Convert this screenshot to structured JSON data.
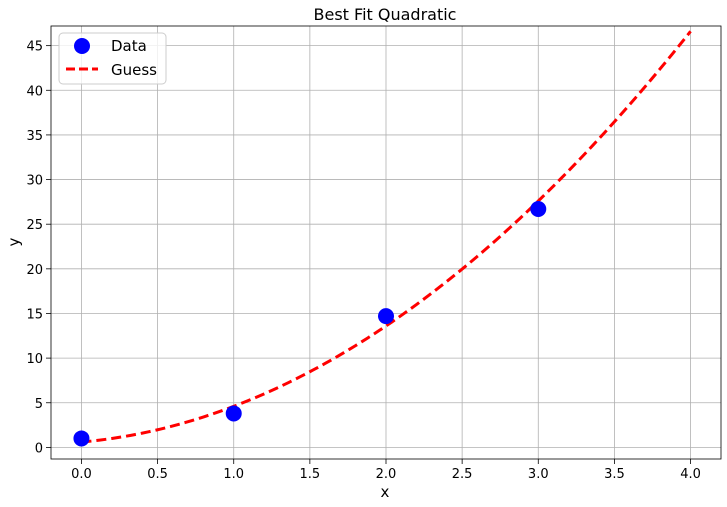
{
  "chart_data": {
    "type": "scatter",
    "title": "Best Fit Quadratic",
    "xlabel": "x",
    "ylabel": "y",
    "xlim": [
      -0.2,
      4.2
    ],
    "ylim": [
      -1.3,
      47.2
    ],
    "xticks": [
      0.0,
      0.5,
      1.0,
      1.5,
      2.0,
      2.5,
      3.0,
      3.5,
      4.0
    ],
    "xtick_labels": [
      "0.0",
      "0.5",
      "1.0",
      "1.5",
      "2.0",
      "2.5",
      "3.0",
      "3.5",
      "4.0"
    ],
    "yticks": [
      0,
      5,
      10,
      15,
      20,
      25,
      30,
      35,
      40,
      45
    ],
    "ytick_labels": [
      "0",
      "5",
      "10",
      "15",
      "20",
      "25",
      "30",
      "35",
      "40",
      "45"
    ],
    "grid": true,
    "legend_position": "top-left",
    "series": [
      {
        "name": "Data",
        "kind": "scatter",
        "color": "#0000ff",
        "x": [
          0,
          1,
          2,
          3
        ],
        "y": [
          1.0,
          3.8,
          14.7,
          26.7
        ]
      },
      {
        "name": "Guess",
        "kind": "line",
        "style": "dashed",
        "color": "#ff0000",
        "formula": "2.5*x^2 + 1.5*x + 0.6",
        "coefficients": {
          "a": 2.5,
          "b": 1.5,
          "c": 0.6
        },
        "x_range": [
          0,
          4
        ]
      }
    ]
  }
}
